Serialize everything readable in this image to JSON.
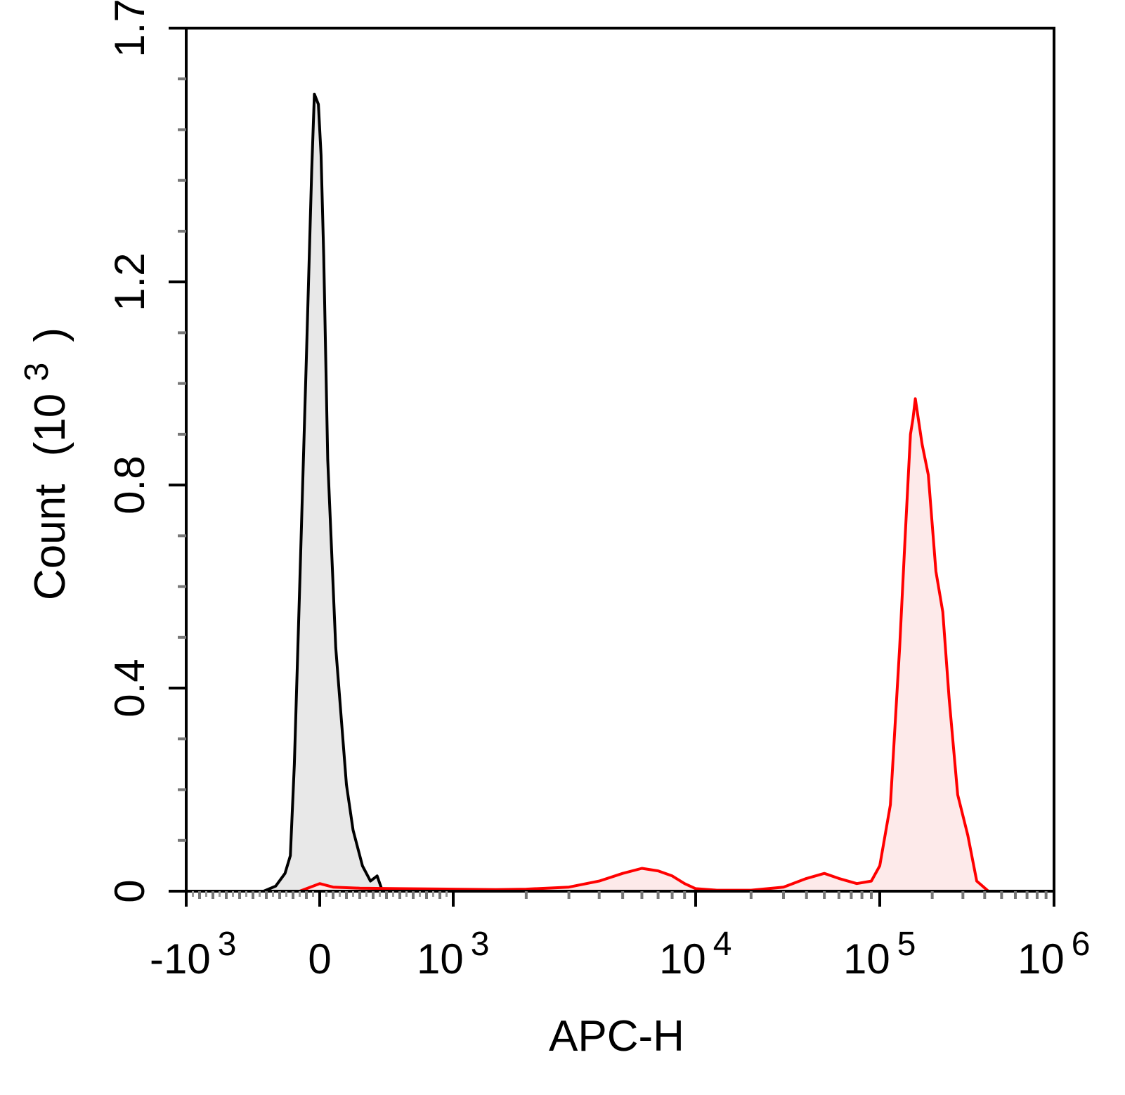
{
  "chart_data": {
    "type": "area",
    "title": "",
    "xlabel": "APC-H",
    "ylabel": {
      "base": "Count",
      "unit_open": "(10",
      "unit_exp": "3",
      "unit_close": ")"
    },
    "x_scale": "biexponential",
    "xlim": [
      -1000,
      1000000
    ],
    "ylim": [
      0,
      1.7
    ],
    "y_unit_multiplier": 1000,
    "x_ticks": [
      {
        "value": -1000,
        "base": "-10",
        "exp": "3"
      },
      {
        "value": 0,
        "base": "0",
        "exp": ""
      },
      {
        "value": 1000,
        "base": "10",
        "exp": "3"
      },
      {
        "value": 10000,
        "base": "10",
        "exp": "4"
      },
      {
        "value": 100000,
        "base": "10",
        "exp": "5"
      },
      {
        "value": 1000000,
        "base": "10",
        "exp": "6"
      }
    ],
    "y_ticks": [
      {
        "value": 0,
        "label": "0"
      },
      {
        "value": 0.4,
        "label": "0.4"
      },
      {
        "value": 0.8,
        "label": "0.8"
      },
      {
        "value": 1.2,
        "label": "1.2"
      },
      {
        "value": 1.7,
        "label": "1.7"
      }
    ],
    "grid": false,
    "legend": "none",
    "series": [
      {
        "color": "#000000",
        "fill": "#e8e8e8",
        "x": [
          -420,
          -330,
          -260,
          -220,
          -190,
          -150,
          -100,
          -60,
          -40,
          -10,
          10,
          30,
          60,
          120,
          200,
          250,
          320,
          380,
          430,
          470
        ],
        "y": [
          0.0,
          0.01,
          0.035,
          0.07,
          0.25,
          0.6,
          1.05,
          1.42,
          1.57,
          1.55,
          1.45,
          1.25,
          0.85,
          0.48,
          0.21,
          0.12,
          0.05,
          0.02,
          0.03,
          0.0
        ]
      },
      {
        "color": "#ff0000",
        "fill": "#fdeaea",
        "x": [
          -150,
          0,
          100,
          300,
          600,
          1000,
          1500,
          2000,
          3000,
          4000,
          5000,
          6000,
          7000,
          8000,
          9000,
          10000,
          13000,
          20000,
          30000,
          40000,
          50000,
          60000,
          75000,
          90000,
          100000,
          115000,
          130000,
          140000,
          150000,
          155000,
          160000,
          175000,
          190000,
          210000,
          230000,
          250000,
          280000,
          320000,
          360000,
          420000
        ],
        "y": [
          0.0,
          0.015,
          0.008,
          0.006,
          0.005,
          0.004,
          0.003,
          0.004,
          0.008,
          0.02,
          0.035,
          0.045,
          0.04,
          0.03,
          0.015,
          0.005,
          0.002,
          0.002,
          0.008,
          0.025,
          0.035,
          0.025,
          0.015,
          0.02,
          0.05,
          0.17,
          0.48,
          0.7,
          0.9,
          0.93,
          0.97,
          0.88,
          0.82,
          0.63,
          0.55,
          0.38,
          0.19,
          0.11,
          0.02,
          0.0
        ]
      }
    ]
  }
}
